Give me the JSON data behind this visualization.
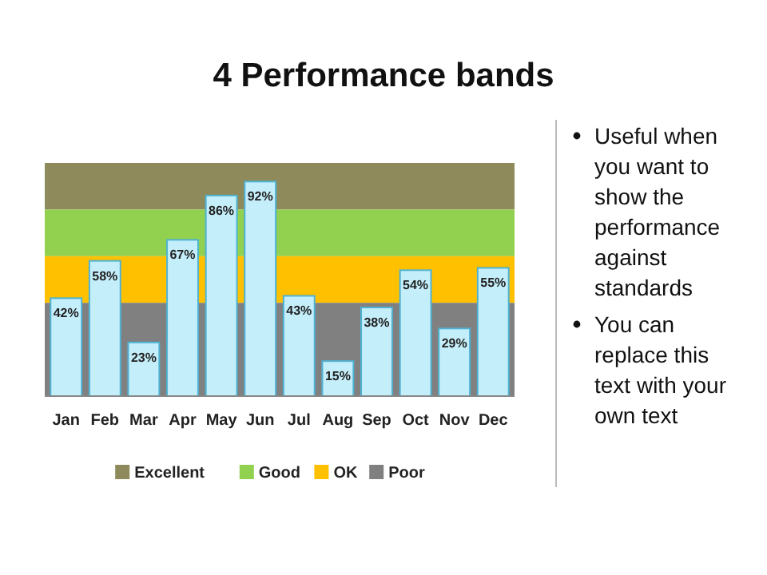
{
  "chart_data": {
    "type": "bar",
    "title": "4 Performance bands",
    "categories": [
      "Jan",
      "Feb",
      "Mar",
      "Apr",
      "May",
      "Jun",
      "Jul",
      "Aug",
      "Sep",
      "Oct",
      "Nov",
      "Dec"
    ],
    "values": [
      42,
      58,
      23,
      67,
      86,
      92,
      43,
      15,
      38,
      54,
      29,
      55
    ],
    "value_labels": [
      "42%",
      "58%",
      "23%",
      "67%",
      "86%",
      "92%",
      "43%",
      "15%",
      "38%",
      "54%",
      "29%",
      "55%"
    ],
    "color": "#c4eefa",
    "ylim": [
      0,
      100
    ],
    "tick_labels": "x",
    "legend": "bottom",
    "bands": [
      {
        "axis": "y",
        "from": 80,
        "to": 100,
        "label": "Excellent",
        "color": "#8e8a5b"
      },
      {
        "axis": "y",
        "from": 60,
        "to": 80,
        "label": "Good",
        "color": "#92d050"
      },
      {
        "axis": "y",
        "from": 40,
        "to": 60,
        "label": "OK",
        "color": "#ffc000"
      },
      {
        "axis": "y",
        "from": 0,
        "to": 40,
        "label": "Poor",
        "color": "#808080"
      }
    ],
    "annotations": [
      "Useful when you want to show the performance against standards",
      "You can replace this text with your own text"
    ]
  }
}
